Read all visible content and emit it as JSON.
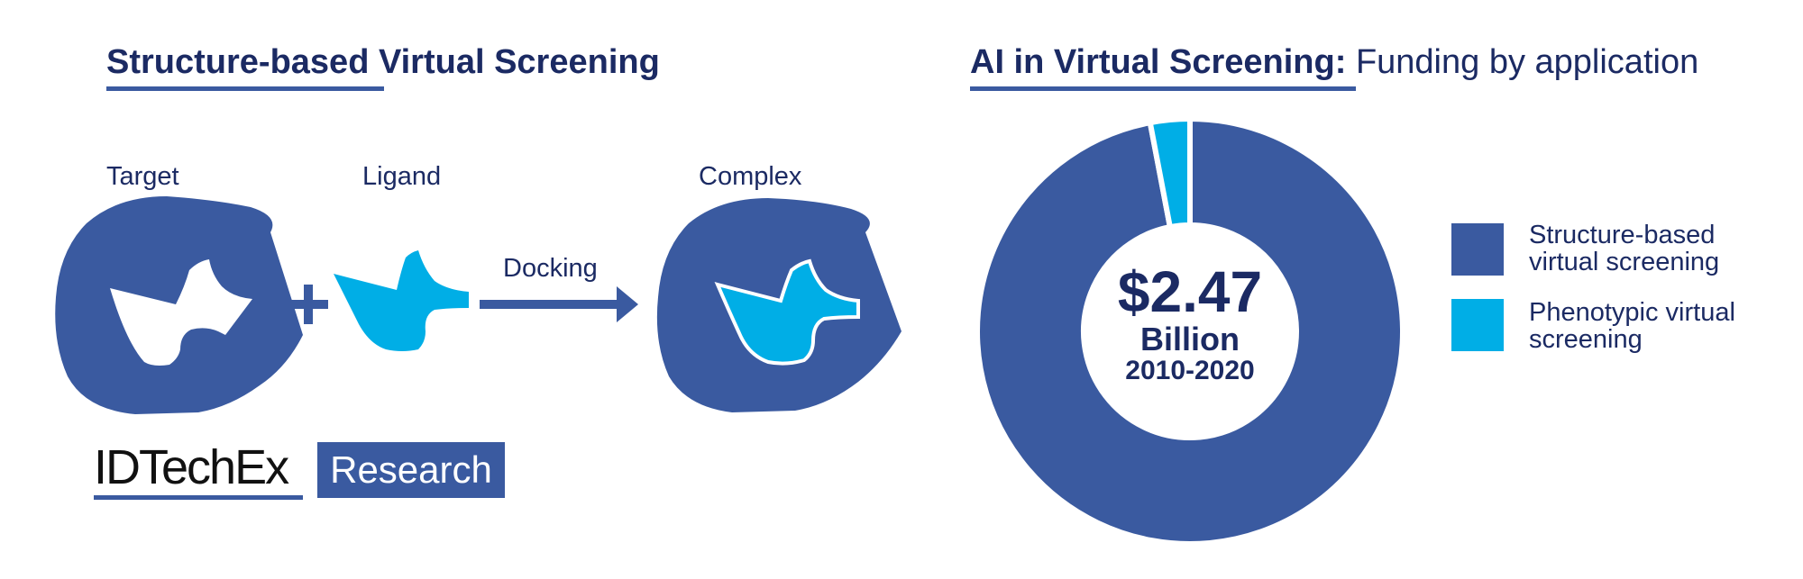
{
  "colors": {
    "navy": "#1b2a63",
    "structure_blue": "#3a5aa0",
    "phenotypic_cyan": "#00aee6",
    "white": "#ffffff"
  },
  "left_panel": {
    "title": "Structure-based Virtual Screening",
    "target_label": "Target",
    "ligand_label": "Ligand",
    "docking_label": "Docking",
    "complex_label": "Complex",
    "plus_symbol": "+"
  },
  "logo": {
    "brand": "IDTechEx",
    "research": "Research"
  },
  "right_panel": {
    "title_bold": "AI in Virtual Screening:",
    "title_rest": " Funding by application",
    "center_value": "$2.47",
    "center_unit": "Billion",
    "center_years": "2010-2020"
  },
  "chart_data": {
    "type": "pie",
    "title": "AI in Virtual Screening: Funding by application",
    "total_label": "$2.47 Billion 2010-2020",
    "categories": [
      "Structure-based virtual screening",
      "Phenotypic virtual screening"
    ],
    "values": [
      97,
      3
    ],
    "unit": "percent of funding (estimated)",
    "colors": [
      "#3a5aa0",
      "#00aee6"
    ],
    "legend_position": "right",
    "donut": true
  }
}
